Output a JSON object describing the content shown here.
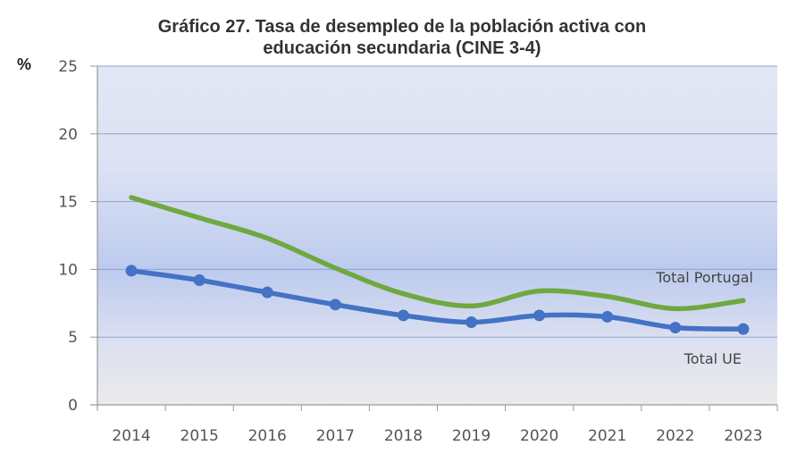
{
  "chart_data": {
    "type": "line",
    "title_lines": [
      "Gráfico 27. Tasa de desempleo de la población activa con",
      "educación secundaria (CINE 3-4)"
    ],
    "ylabel": "%",
    "xlabel": "",
    "ylim": [
      0,
      25
    ],
    "yticks": [
      0,
      5,
      10,
      15,
      20,
      25
    ],
    "grid": true,
    "legend": "inline-labels",
    "categories": [
      "2014",
      "2015",
      "2016",
      "2017",
      "2018",
      "2019",
      "2020",
      "2021",
      "2022",
      "2023"
    ],
    "series": [
      {
        "name": "Total Portugal",
        "color": "#70a840",
        "smooth": true,
        "markers": false,
        "values": [
          15.3,
          13.8,
          12.3,
          10.1,
          8.2,
          7.3,
          8.4,
          8.0,
          7.1,
          7.7
        ]
      },
      {
        "name": "Total UE",
        "color": "#4472c4",
        "smooth": true,
        "markers": true,
        "values": [
          9.9,
          9.2,
          8.3,
          7.4,
          6.6,
          6.1,
          6.6,
          6.5,
          5.7,
          5.6
        ]
      }
    ]
  }
}
